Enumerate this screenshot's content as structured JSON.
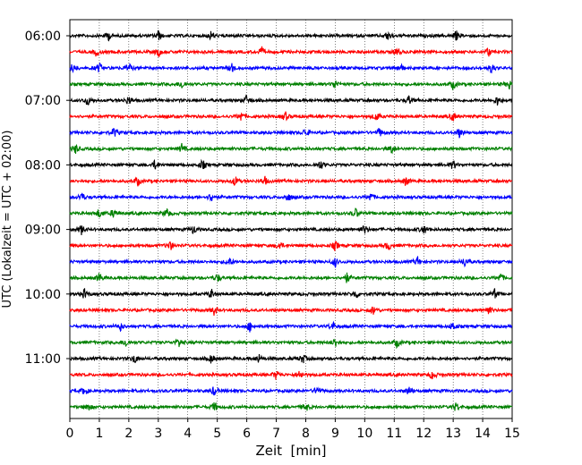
{
  "chart_data": {
    "type": "line",
    "title": "",
    "xlabel": "Zeit  [min]",
    "ylabel": "UTC (Lokalzeit = UTC + 02:00)",
    "xlim": [
      0,
      15
    ],
    "x_ticks": [
      "0",
      "1",
      "2",
      "3",
      "4",
      "5",
      "6",
      "7",
      "8",
      "9",
      "10",
      "11",
      "12",
      "13",
      "14",
      "15"
    ],
    "y_tick_labels": [
      "06:00",
      "07:00",
      "08:00",
      "09:00",
      "10:00",
      "11:00"
    ],
    "grid": "vertical dotted",
    "trace_colors": [
      "#000000",
      "#ff0000",
      "#0000ff",
      "#008000"
    ],
    "series": [
      {
        "start": "06:00",
        "color": "#000000",
        "events_min": [
          1.3,
          3.0,
          4.8,
          10.8,
          13.1
        ]
      },
      {
        "start": "06:15",
        "color": "#ff0000",
        "events_min": [
          0.9,
          3.0,
          6.5,
          11.1,
          14.2
        ]
      },
      {
        "start": "06:30",
        "color": "#0000ff",
        "events_min": [
          0.1,
          1.0,
          2.0,
          5.5,
          11.2,
          14.3
        ]
      },
      {
        "start": "06:45",
        "color": "#008000",
        "events_min": [
          3.8,
          9.0,
          13.0,
          14.9
        ]
      },
      {
        "start": "07:00",
        "color": "#000000",
        "events_min": [
          0.6,
          2.0,
          6.0,
          11.5,
          14.5
        ]
      },
      {
        "start": "07:15",
        "color": "#ff0000",
        "events_min": [
          5.8,
          7.3,
          10.4,
          13.0
        ]
      },
      {
        "start": "07:30",
        "color": "#0000ff",
        "events_min": [
          1.5,
          8.0,
          10.5,
          13.2
        ]
      },
      {
        "start": "07:45",
        "color": "#008000",
        "events_min": [
          0.2,
          3.8,
          10.9
        ]
      },
      {
        "start": "08:00",
        "color": "#000000",
        "events_min": [
          2.9,
          4.5,
          8.5,
          13.0
        ]
      },
      {
        "start": "08:15",
        "color": "#ff0000",
        "events_min": [
          2.3,
          5.6,
          6.6,
          11.4
        ]
      },
      {
        "start": "08:30",
        "color": "#0000ff",
        "events_min": [
          0.4,
          4.8,
          7.4,
          10.2
        ]
      },
      {
        "start": "08:45",
        "color": "#008000",
        "events_min": [
          1.0,
          1.5,
          3.3,
          9.7
        ]
      },
      {
        "start": "09:00",
        "color": "#000000",
        "events_min": [
          0.4,
          4.2,
          10.0,
          12.0
        ]
      },
      {
        "start": "09:15",
        "color": "#ff0000",
        "events_min": [
          3.4,
          7.1,
          9.0,
          10.8
        ]
      },
      {
        "start": "09:30",
        "color": "#0000ff",
        "events_min": [
          5.4,
          9.0,
          11.8,
          13.4
        ]
      },
      {
        "start": "09:45",
        "color": "#008000",
        "events_min": [
          1.0,
          5.0,
          9.4,
          14.6
        ]
      },
      {
        "start": "10:00",
        "color": "#000000",
        "events_min": [
          0.5,
          4.8,
          9.7,
          14.4
        ]
      },
      {
        "start": "10:15",
        "color": "#ff0000",
        "events_min": [
          4.9,
          10.3,
          14.2
        ]
      },
      {
        "start": "10:30",
        "color": "#0000ff",
        "events_min": [
          1.7,
          6.1,
          8.9,
          13.0
        ]
      },
      {
        "start": "10:45",
        "color": "#008000",
        "events_min": [
          1.9,
          3.7,
          9.0,
          11.1
        ]
      },
      {
        "start": "11:00",
        "color": "#000000",
        "events_min": [
          2.2,
          4.8,
          6.4,
          7.9
        ]
      },
      {
        "start": "11:15",
        "color": "#ff0000",
        "events_min": [
          7.0,
          7.8,
          12.3
        ]
      },
      {
        "start": "11:30",
        "color": "#0000ff",
        "events_min": [
          0.5,
          4.9,
          8.4,
          11.5
        ]
      },
      {
        "start": "11:45",
        "color": "#008000",
        "events_min": [
          0.6,
          4.9,
          8.0,
          13.1
        ]
      }
    ]
  }
}
